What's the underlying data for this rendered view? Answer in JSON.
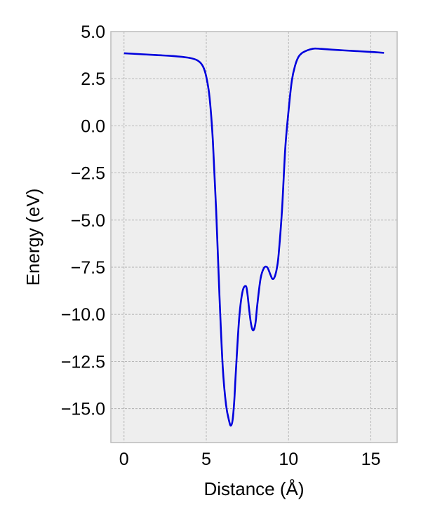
{
  "chart_data": {
    "type": "line",
    "title": "",
    "xlabel": "Distance (Å)",
    "ylabel": "Energy (eV)",
    "xlim": [
      -0.8,
      16.6
    ],
    "ylim": [
      -16.8,
      5.0
    ],
    "xticks": [
      0,
      5,
      10,
      15
    ],
    "xtick_labels": [
      "0",
      "5",
      "10",
      "15"
    ],
    "yticks": [
      5.0,
      2.5,
      0.0,
      -2.5,
      -5.0,
      -7.5,
      -10.0,
      -12.5,
      -15.0
    ],
    "ytick_labels": [
      "5.0",
      "2.5",
      "0.0",
      "−2.5",
      "−5.0",
      "−7.5",
      "−10.0",
      "−12.5",
      "−15.0"
    ],
    "grid": true,
    "background_color": "#eeeeee",
    "grid_color": "#b0b0b0",
    "series": [
      {
        "color": "#0000dd",
        "x": [
          0,
          1,
          2,
          3,
          4,
          4.5,
          4.8,
          5.0,
          5.2,
          5.4,
          5.6,
          5.8,
          6.0,
          6.2,
          6.4,
          6.5,
          6.6,
          6.7,
          6.8,
          7.0,
          7.2,
          7.4,
          7.5,
          7.6,
          7.7,
          7.8,
          7.9,
          8.0,
          8.1,
          8.3,
          8.5,
          8.7,
          8.9,
          9.0,
          9.1,
          9.2,
          9.3,
          9.4,
          9.6,
          9.8,
          10.0,
          10.2,
          10.4,
          10.6,
          10.8,
          11.0,
          11.3,
          11.6,
          12.0,
          13.0,
          14.0,
          15.0,
          15.8
        ],
        "y": [
          3.85,
          3.8,
          3.75,
          3.7,
          3.6,
          3.45,
          3.15,
          2.6,
          1.5,
          -0.8,
          -4.5,
          -9.0,
          -12.8,
          -14.8,
          -15.7,
          -15.9,
          -15.6,
          -14.6,
          -13.0,
          -10.2,
          -8.8,
          -8.5,
          -8.9,
          -9.7,
          -10.4,
          -10.8,
          -10.8,
          -10.4,
          -9.5,
          -8.1,
          -7.55,
          -7.5,
          -7.9,
          -8.1,
          -8.1,
          -7.9,
          -7.5,
          -6.8,
          -4.5,
          -1.2,
          0.8,
          2.4,
          3.2,
          3.65,
          3.85,
          3.95,
          4.05,
          4.1,
          4.08,
          4.02,
          3.97,
          3.92,
          3.87
        ]
      }
    ]
  }
}
